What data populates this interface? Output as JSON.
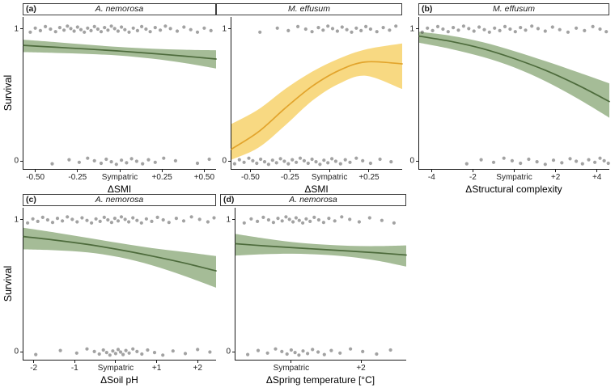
{
  "figure": {
    "y_axis_label": "Survival",
    "colors": {
      "green_line": "#4d6b3c",
      "green_band": "#7fa06b",
      "yellow_line": "#e2a42c",
      "yellow_band": "#f6cf63",
      "point": "#222222",
      "axis": "#1a1a1a"
    }
  },
  "chart_data": [
    {
      "id": "panel-a-smi-nemorosa",
      "type": "line+scatter",
      "panel_letter": "(a)",
      "title": "A. nemorosa",
      "xlabel": "ΔSMI",
      "ylabel": "Survival",
      "color_key": "green",
      "x_domain": [
        -0.57,
        0.57
      ],
      "y_domain": [
        -0.06,
        1.09
      ],
      "x_ticks": [
        {
          "v": -0.5,
          "label": "-0.50"
        },
        {
          "v": -0.25,
          "label": "-0.25"
        },
        {
          "v": 0,
          "label": "Sympatric"
        },
        {
          "v": 0.25,
          "label": "+0.25"
        },
        {
          "v": 0.5,
          "label": "+0.50"
        }
      ],
      "y_ticks": [
        {
          "v": 1,
          "label": "1"
        },
        {
          "v": 0,
          "label": "0"
        }
      ],
      "fit": {
        "x": [
          -0.57,
          -0.38,
          -0.19,
          0,
          0.19,
          0.38,
          0.57
        ],
        "mean": [
          0.875,
          0.861,
          0.847,
          0.832,
          0.814,
          0.794,
          0.772
        ],
        "upper": [
          0.918,
          0.9,
          0.88,
          0.863,
          0.85,
          0.842,
          0.838
        ],
        "lower": [
          0.824,
          0.818,
          0.81,
          0.798,
          0.775,
          0.742,
          0.7
        ]
      },
      "survived_x": [
        -0.53,
        -0.5,
        -0.47,
        -0.44,
        -0.41,
        -0.38,
        -0.355,
        -0.33,
        -0.31,
        -0.29,
        -0.27,
        -0.25,
        -0.23,
        -0.21,
        -0.19,
        -0.17,
        -0.15,
        -0.13,
        -0.11,
        -0.09,
        -0.07,
        -0.05,
        -0.03,
        -0.01,
        0.01,
        0.03,
        0.055,
        0.08,
        0.105,
        0.13,
        0.155,
        0.18,
        0.21,
        0.24,
        0.27,
        0.3,
        0.34,
        0.38,
        0.42,
        0.46,
        0.5,
        0.54
      ],
      "died_x": [
        -0.4,
        -0.3,
        -0.24,
        -0.19,
        -0.15,
        -0.11,
        -0.08,
        -0.05,
        -0.02,
        0.01,
        0.04,
        0.07,
        0.1,
        0.135,
        0.17,
        0.21,
        0.26,
        0.33,
        0.46,
        0.53
      ]
    },
    {
      "id": "panel-a-smi-effusum",
      "type": "line+scatter",
      "panel_letter": "",
      "title": "M. effusum",
      "xlabel": "ΔSMI",
      "ylabel": "Survival",
      "color_key": "yellow",
      "x_domain": [
        -0.62,
        0.46
      ],
      "y_domain": [
        -0.06,
        1.09
      ],
      "x_ticks": [
        {
          "v": -0.5,
          "label": "-0.50"
        },
        {
          "v": -0.25,
          "label": "-0.25"
        },
        {
          "v": 0,
          "label": "Sympatric"
        },
        {
          "v": 0.25,
          "label": "+0.25"
        }
      ],
      "y_ticks": [
        {
          "v": 1,
          "label": "1"
        },
        {
          "v": 0,
          "label": "0"
        }
      ],
      "fit": {
        "x": [
          -0.62,
          -0.45,
          -0.28,
          -0.11,
          0.06,
          0.23,
          0.46
        ],
        "mean": [
          0.09,
          0.22,
          0.4,
          0.565,
          0.685,
          0.75,
          0.735
        ],
        "upper": [
          0.28,
          0.39,
          0.545,
          0.675,
          0.775,
          0.845,
          0.89
        ],
        "lower": [
          0.01,
          0.1,
          0.27,
          0.455,
          0.585,
          0.645,
          0.545
        ]
      },
      "survived_x": [
        -0.44,
        -0.33,
        -0.26,
        -0.2,
        -0.15,
        -0.11,
        -0.07,
        -0.04,
        -0.01,
        0.02,
        0.05,
        0.08,
        0.11,
        0.14,
        0.17,
        0.2,
        0.23,
        0.26,
        0.3,
        0.34,
        0.38,
        0.42
      ],
      "died_x": [
        -0.6,
        -0.57,
        -0.54,
        -0.51,
        -0.485,
        -0.46,
        -0.435,
        -0.41,
        -0.385,
        -0.36,
        -0.335,
        -0.31,
        -0.285,
        -0.26,
        -0.235,
        -0.21,
        -0.185,
        -0.16,
        -0.135,
        -0.11,
        -0.085,
        -0.06,
        -0.035,
        -0.01,
        0.015,
        0.04,
        0.07,
        0.1,
        0.13,
        0.17,
        0.21,
        0.26,
        0.32,
        0.39
      ]
    },
    {
      "id": "panel-b-structure-effusum",
      "type": "line+scatter",
      "panel_letter": "(b)",
      "title": "M. effusum",
      "xlabel": "ΔStructural complexity",
      "ylabel": "Survival",
      "color_key": "green",
      "x_domain": [
        -4.6,
        4.6
      ],
      "y_domain": [
        -0.06,
        1.09
      ],
      "x_ticks": [
        {
          "v": -4,
          "label": "-4"
        },
        {
          "v": -2,
          "label": "-2"
        },
        {
          "v": 0,
          "label": "Sympatric"
        },
        {
          "v": 2,
          "label": "+2"
        },
        {
          "v": 4,
          "label": "+4"
        }
      ],
      "y_ticks": [
        {
          "v": 1,
          "label": "1"
        },
        {
          "v": 0,
          "label": "0"
        }
      ],
      "fit": {
        "x": [
          -4.6,
          -3.07,
          -1.53,
          0,
          1.53,
          3.07,
          4.6
        ],
        "mean": [
          0.945,
          0.905,
          0.85,
          0.775,
          0.685,
          0.575,
          0.45
        ],
        "upper": [
          0.978,
          0.948,
          0.9,
          0.832,
          0.755,
          0.672,
          0.588
        ],
        "lower": [
          0.895,
          0.848,
          0.788,
          0.708,
          0.602,
          0.472,
          0.328
        ]
      },
      "survived_x": [
        -4.45,
        -4.2,
        -3.95,
        -3.7,
        -3.45,
        -3.2,
        -2.95,
        -2.7,
        -2.45,
        -2.2,
        -1.95,
        -1.7,
        -1.45,
        -1.2,
        -0.95,
        -0.7,
        -0.45,
        -0.2,
        0.05,
        0.3,
        0.55,
        0.85,
        1.15,
        1.5,
        1.85,
        2.2,
        2.6,
        3.0,
        3.4,
        3.8,
        4.15,
        4.45
      ],
      "died_x": [
        -2.3,
        -1.6,
        -1.0,
        -0.5,
        -0.1,
        0.3,
        0.7,
        1.1,
        1.5,
        1.9,
        2.3,
        2.7,
        3.0,
        3.3,
        3.6,
        3.9,
        4.15,
        4.35,
        4.55
      ]
    },
    {
      "id": "panel-c-soilph-nemorosa",
      "type": "line+scatter",
      "panel_letter": "(c)",
      "title": "A. nemorosa",
      "xlabel": "ΔSoil pH",
      "ylabel": "Survival",
      "color_key": "green",
      "x_domain": [
        -2.25,
        2.45
      ],
      "y_domain": [
        -0.06,
        1.09
      ],
      "x_ticks": [
        {
          "v": -2,
          "label": "-2"
        },
        {
          "v": -1,
          "label": "-1"
        },
        {
          "v": 0,
          "label": "Sympatric"
        },
        {
          "v": 1,
          "label": "+1"
        },
        {
          "v": 2,
          "label": "+2"
        }
      ],
      "y_ticks": [
        {
          "v": 1,
          "label": "1"
        },
        {
          "v": 0,
          "label": "0"
        }
      ],
      "fit": {
        "x": [
          -2.25,
          -1.47,
          -0.68,
          0.1,
          0.88,
          1.67,
          2.45
        ],
        "mean": [
          0.872,
          0.845,
          0.812,
          0.772,
          0.725,
          0.672,
          0.612
        ],
        "upper": [
          0.938,
          0.902,
          0.862,
          0.822,
          0.785,
          0.755,
          0.725
        ],
        "lower": [
          0.775,
          0.768,
          0.752,
          0.715,
          0.655,
          0.575,
          0.485
        ]
      },
      "survived_x": [
        -2.15,
        -2.02,
        -1.9,
        -1.78,
        -1.66,
        -1.54,
        -1.42,
        -1.3,
        -1.18,
        -1.06,
        -0.94,
        -0.82,
        -0.7,
        -0.59,
        -0.48,
        -0.38,
        -0.28,
        -0.19,
        -0.1,
        -0.02,
        0.06,
        0.14,
        0.23,
        0.32,
        0.42,
        0.52,
        0.63,
        0.75,
        0.88,
        1.02,
        1.16,
        1.3,
        1.48,
        1.66,
        1.85,
        2.05,
        2.25,
        2.4
      ],
      "died_x": [
        -1.95,
        -1.35,
        -0.95,
        -0.7,
        -0.52,
        -0.4,
        -0.3,
        -0.22,
        -0.14,
        -0.07,
        0.0,
        0.06,
        0.12,
        0.18,
        0.25,
        0.33,
        0.42,
        0.52,
        0.64,
        0.78,
        0.95,
        1.15,
        1.4,
        1.7,
        2.0,
        2.3
      ]
    },
    {
      "id": "panel-d-springtemp-nemorosa",
      "type": "line+scatter",
      "panel_letter": "(d)",
      "title": "A. nemorosa",
      "xlabel": "ΔSpring temperature [°C]",
      "ylabel": "Survival",
      "color_key": "green",
      "x_domain": [
        -1.6,
        3.3
      ],
      "y_domain": [
        -0.06,
        1.09
      ],
      "x_ticks": [
        {
          "v": 0,
          "label": "Sympatric"
        },
        {
          "v": 2,
          "label": "+2"
        }
      ],
      "y_ticks": [
        {
          "v": 1,
          "label": "1"
        },
        {
          "v": 0,
          "label": "0"
        }
      ],
      "fit": {
        "x": [
          -1.6,
          -0.78,
          0.04,
          0.86,
          1.68,
          2.5,
          3.3
        ],
        "mean": [
          0.818,
          0.802,
          0.788,
          0.775,
          0.762,
          0.748,
          0.732
        ],
        "upper": [
          0.892,
          0.858,
          0.83,
          0.812,
          0.802,
          0.8,
          0.805
        ],
        "lower": [
          0.728,
          0.738,
          0.742,
          0.735,
          0.718,
          0.688,
          0.645
        ]
      },
      "survived_x": [
        -1.35,
        -1.15,
        -0.97,
        -0.8,
        -0.65,
        -0.51,
        -0.38,
        -0.26,
        -0.15,
        -0.05,
        0.05,
        0.14,
        0.23,
        0.33,
        0.43,
        0.54,
        0.66,
        0.79,
        0.93,
        1.08,
        1.25,
        1.45,
        1.68,
        1.95,
        2.25,
        2.6,
        2.95
      ],
      "died_x": [
        -1.25,
        -0.95,
        -0.68,
        -0.45,
        -0.27,
        -0.12,
        0.0,
        0.11,
        0.22,
        0.34,
        0.47,
        0.61,
        0.77,
        0.95,
        1.15,
        1.4,
        1.7,
        2.05,
        2.45,
        2.85
      ]
    }
  ]
}
